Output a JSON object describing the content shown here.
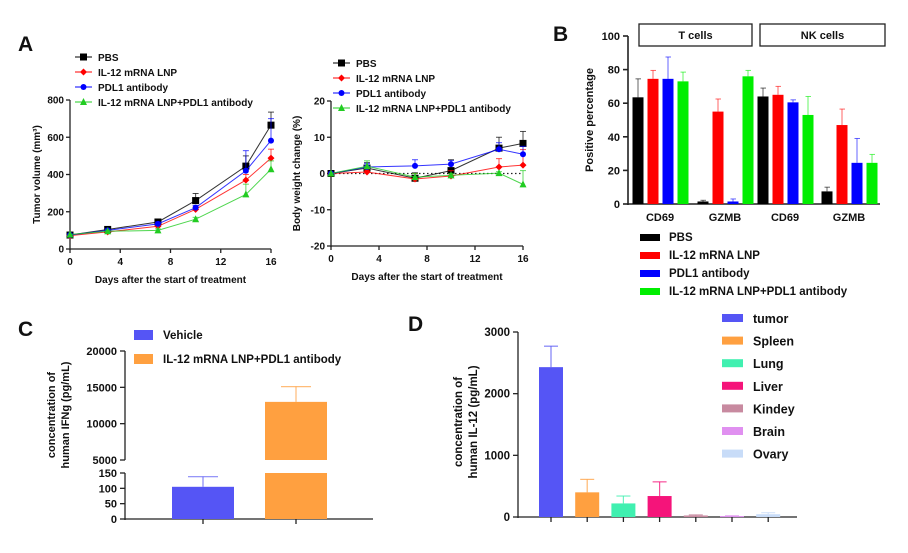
{
  "panels": {
    "a": "A",
    "b": "B",
    "c": "C",
    "d": "D"
  },
  "chart_data": [
    {
      "type": "line",
      "panel": "A",
      "xlabel": "Days after the start of treatment",
      "ylabel": "Tumor volume (mm³)",
      "xlim": [
        0,
        16
      ],
      "ylim": [
        0,
        800
      ],
      "xticks": [
        "0",
        "4",
        "8",
        "12",
        "16"
      ],
      "yticks": [
        "0",
        "200",
        "400",
        "600",
        "800"
      ],
      "legend_position": "top-left",
      "x": [
        0,
        3,
        7,
        10,
        14,
        16
      ],
      "series": [
        {
          "name": "PBS",
          "color": "#000000",
          "marker": "square",
          "values": [
            75,
            105,
            145,
            260,
            445,
            665
          ],
          "errors": [
            0,
            10,
            15,
            38,
            55,
            70
          ]
        },
        {
          "name": "IL-12 mRNA LNP",
          "color": "#ff0000",
          "marker": "diamond",
          "values": [
            72,
            92,
            122,
            213,
            370,
            488
          ],
          "errors": [
            0,
            8,
            10,
            12,
            30,
            48
          ]
        },
        {
          "name": "PDL1 antibody",
          "color": "#0000ff",
          "marker": "circle",
          "values": [
            75,
            100,
            135,
            222,
            420,
            582
          ],
          "errors": [
            0,
            8,
            10,
            12,
            108,
            118
          ]
        },
        {
          "name": "IL-12 mRNA LNP+PDL1 antibody",
          "color": "#22cc22",
          "marker": "triangle",
          "values": [
            78,
            95,
            100,
            160,
            293,
            428
          ],
          "errors": [
            0,
            6,
            8,
            10,
            55,
            45
          ]
        }
      ]
    },
    {
      "type": "line",
      "panel": "A",
      "xlabel": "Days after the start of treatment",
      "ylabel": "Body weight change (%)",
      "xlim": [
        0,
        16
      ],
      "ylim": [
        -20,
        20
      ],
      "xticks": [
        "0",
        "4",
        "8",
        "12",
        "16"
      ],
      "yticks": [
        "-20",
        "-10",
        "0",
        "10",
        "20"
      ],
      "reference_line": 0,
      "legend_position": "top-left",
      "x": [
        0,
        3,
        7,
        10,
        14,
        16
      ],
      "series": [
        {
          "name": "PBS",
          "color": "#000000",
          "marker": "square",
          "values": [
            0,
            1.5,
            -1.3,
            0.8,
            7.0,
            8.3
          ],
          "errors": [
            0,
            1.5,
            1.5,
            3,
            3,
            3.3
          ]
        },
        {
          "name": "IL-12 mRNA LNP",
          "color": "#ff0000",
          "marker": "diamond",
          "values": [
            0,
            0.4,
            -1.5,
            -0.7,
            1.8,
            2.3
          ],
          "errors": [
            0,
            0.5,
            1.5,
            1.5,
            2.3,
            4.3
          ]
        },
        {
          "name": "PDL1 antibody",
          "color": "#0000ff",
          "marker": "circle",
          "values": [
            0,
            1.8,
            2.1,
            2.6,
            6.7,
            5.3
          ],
          "errors": [
            0,
            1,
            1.7,
            1,
            1.8,
            2.2
          ]
        },
        {
          "name": "IL-12 mRNA LNP+PDL1 antibody",
          "color": "#22cc22",
          "marker": "triangle",
          "values": [
            0,
            2.0,
            -1.0,
            -0.5,
            0.1,
            -3.0
          ],
          "errors": [
            0,
            1.5,
            1,
            0.5,
            0.4,
            3.8
          ]
        }
      ]
    },
    {
      "type": "bar",
      "panel": "B",
      "ylabel": "Positive percentage",
      "ylim": [
        0,
        100
      ],
      "yticks": [
        "0",
        "20",
        "40",
        "60",
        "80",
        "100"
      ],
      "facets": [
        "T cells",
        "NK cells"
      ],
      "categories": [
        "CD69",
        "GZMB",
        "CD69",
        "GZMB"
      ],
      "legend_position": "bottom",
      "series": [
        {
          "name": "PBS",
          "color": "#000000",
          "values": [
            63.5,
            1.5,
            64,
            7.5
          ],
          "errors": [
            11,
            0.7,
            5,
            2.5
          ]
        },
        {
          "name": "IL-12 mRNA LNP",
          "color": "#ff0000",
          "values": [
            74.5,
            55,
            65,
            47
          ],
          "errors": [
            5,
            7.5,
            5,
            9.5
          ]
        },
        {
          "name": "PDL1 antibody",
          "color": "#0000ff",
          "values": [
            74.5,
            1.5,
            60.5,
            24.5
          ],
          "errors": [
            13,
            1.5,
            1.5,
            14.5
          ]
        },
        {
          "name": "IL-12 mRNA LNP+PDL1 antibody",
          "color": "#00ee00",
          "values": [
            73,
            76,
            53,
            24.5
          ],
          "errors": [
            5.5,
            3.5,
            11,
            5
          ]
        }
      ]
    },
    {
      "type": "bar",
      "panel": "C",
      "ylabel": [
        "concentration of",
        "human IFNg (pg/mL)"
      ],
      "axis_break": [
        150,
        5000
      ],
      "ylim": [
        0,
        20000
      ],
      "yticks_lower": [
        "0",
        "50",
        "100",
        "150"
      ],
      "yticks_upper": [
        "5000",
        "10000",
        "15000",
        "20000"
      ],
      "legend_position": "top",
      "series": [
        {
          "name": "Vehicle",
          "color": "#5555f5",
          "value": 105,
          "error": 33
        },
        {
          "name": "IL-12 mRNA LNP+PDL1 antibody",
          "color": "#ffa040",
          "value": 13000,
          "error": 2100
        }
      ]
    },
    {
      "type": "bar",
      "panel": "D",
      "ylabel": [
        "concentration of",
        "human IL-12 (pg/mL)"
      ],
      "ylim": [
        0,
        3000
      ],
      "yticks": [
        "0",
        "1000",
        "2000",
        "3000"
      ],
      "legend_position": "right",
      "series": [
        {
          "name": "tumor",
          "color": "#5555f5",
          "value": 2430,
          "error": 340
        },
        {
          "name": "Spleen",
          "color": "#ffa040",
          "value": 400,
          "error": 210
        },
        {
          "name": "Lung",
          "color": "#40f0b0",
          "value": 220,
          "error": 120
        },
        {
          "name": "Liver",
          "color": "#f5147a",
          "value": 340,
          "error": 230
        },
        {
          "name": "Kindey",
          "color": "#c88aa0",
          "value": 25,
          "error": 10
        },
        {
          "name": "Brain",
          "color": "#e090f0",
          "value": 15,
          "error": 5
        },
        {
          "name": "Ovary",
          "color": "#c8dcf8",
          "value": 45,
          "error": 25
        }
      ]
    }
  ]
}
